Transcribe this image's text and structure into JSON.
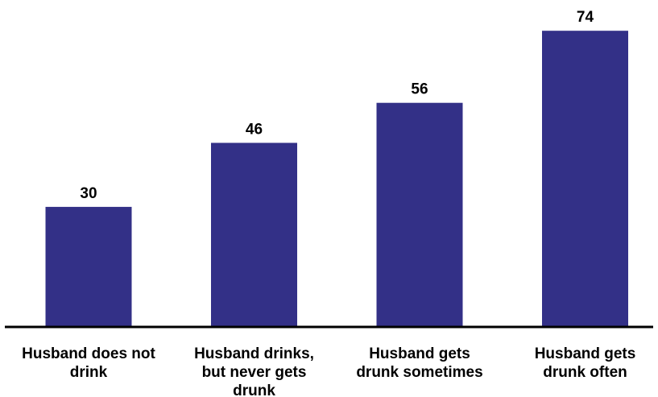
{
  "chart_data": {
    "type": "bar",
    "categories": [
      [
        "Husband does not",
        "drink"
      ],
      [
        "Husband drinks,",
        "but never gets",
        "drunk"
      ],
      [
        "Husband gets",
        "drunk sometimes"
      ],
      [
        "Husband gets",
        "drunk often"
      ]
    ],
    "values": [
      30,
      46,
      56,
      74
    ],
    "value_labels": [
      "30",
      "46",
      "56",
      "74"
    ],
    "ylim": [
      0,
      80
    ],
    "grid": false,
    "legend": "none",
    "bar_color": "#333087",
    "axis_color": "#000000"
  }
}
